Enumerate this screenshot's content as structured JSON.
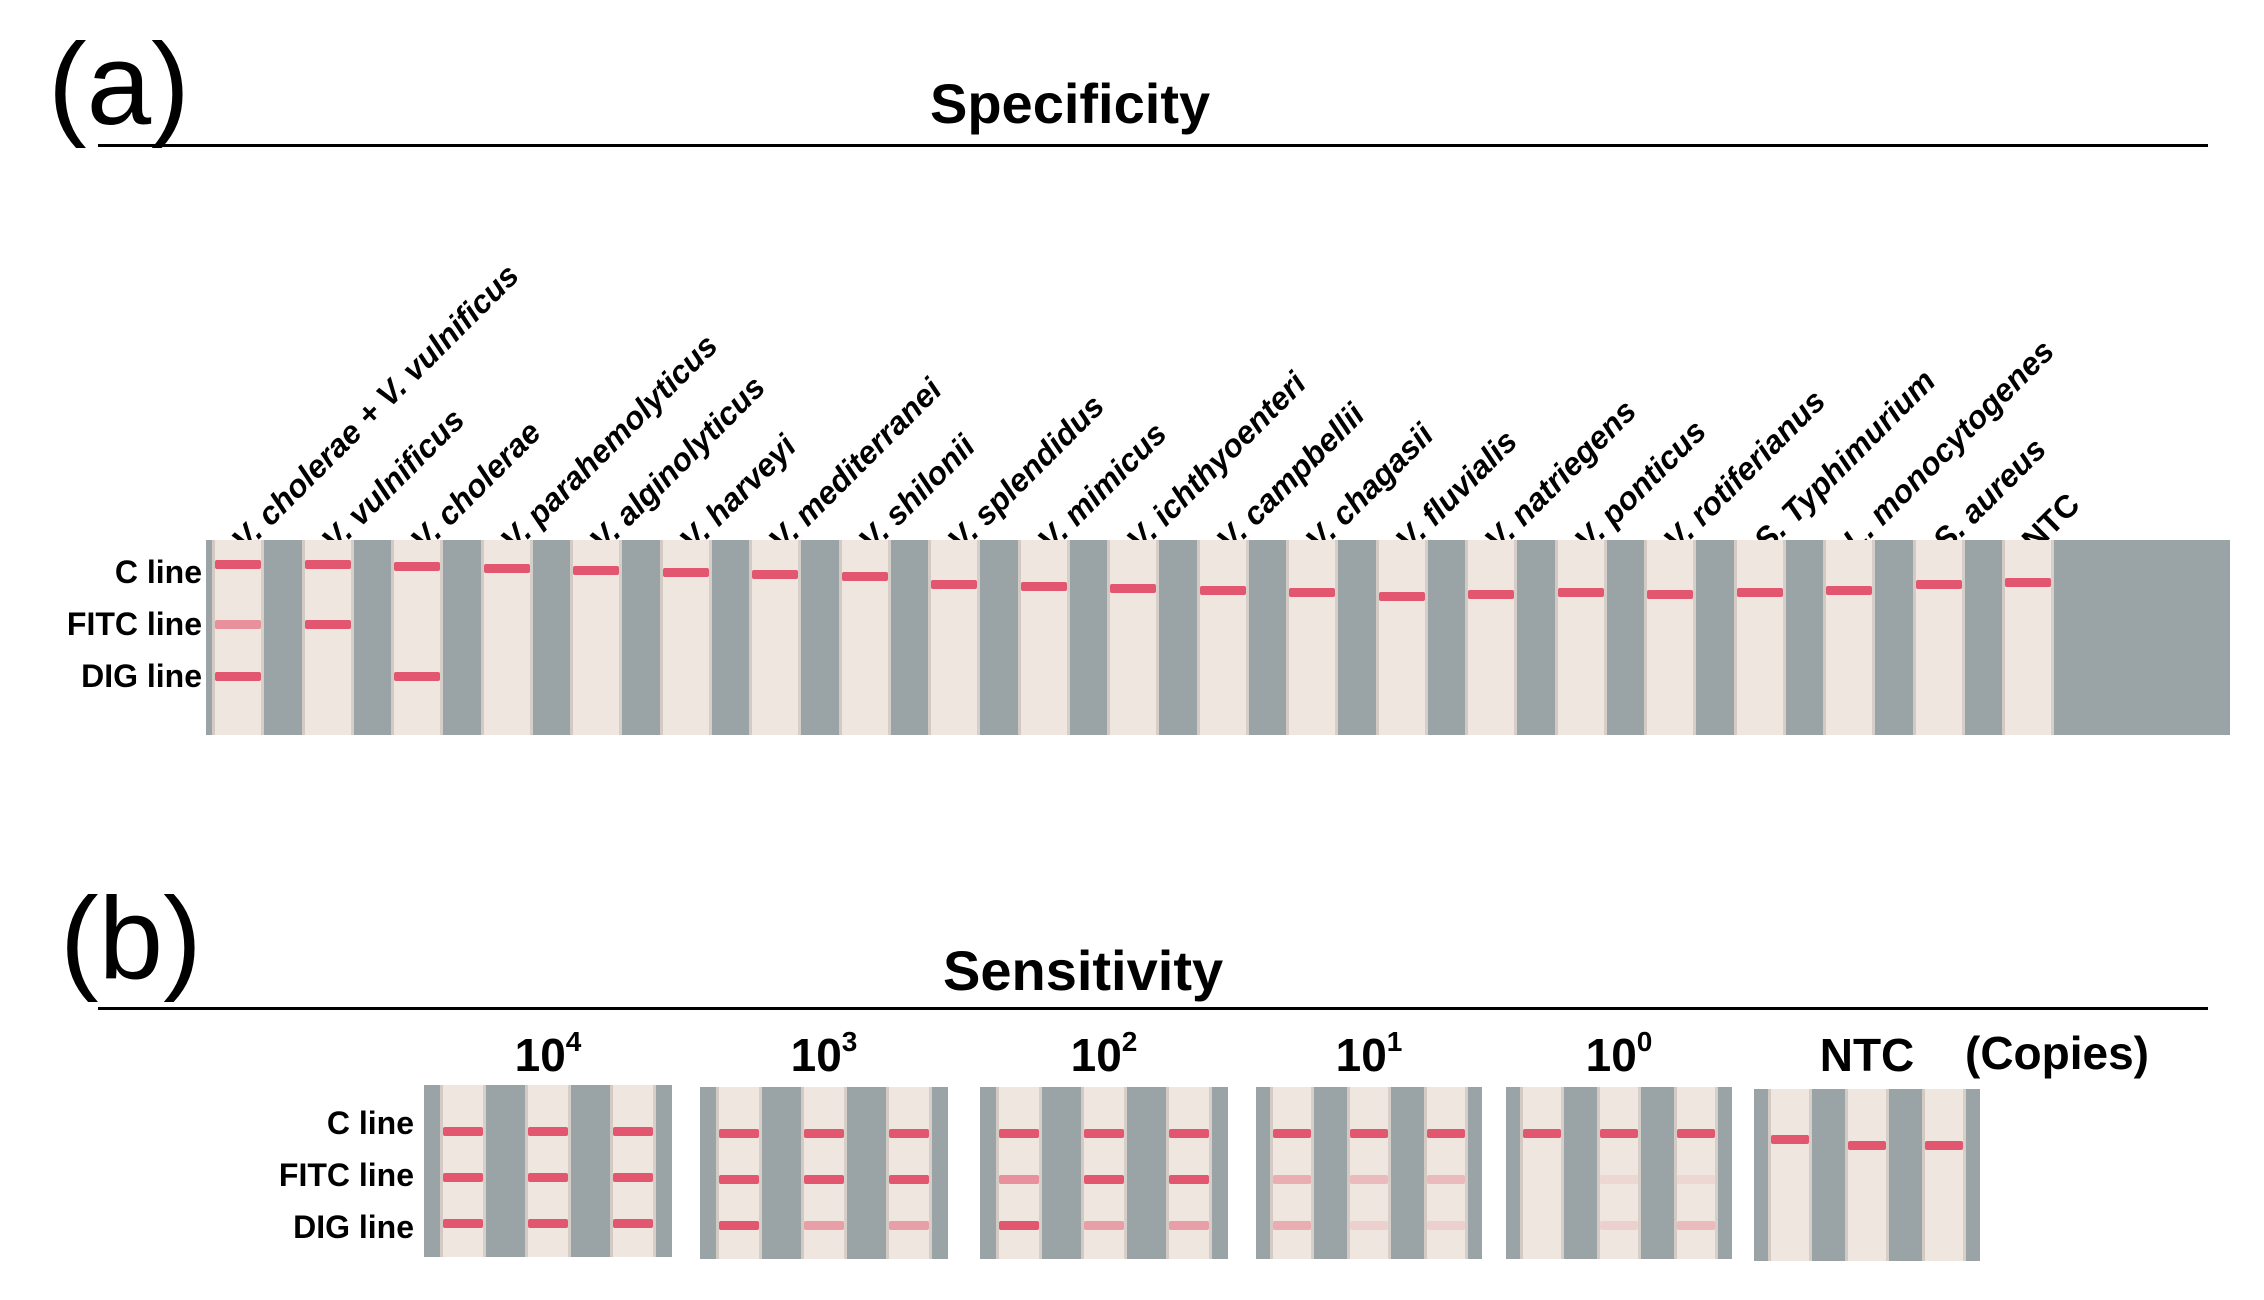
{
  "panel_a": {
    "letter": "(a)",
    "title": "Specificity",
    "line_labels": [
      "C line",
      "FITC line",
      "DIG line"
    ],
    "lanes": [
      {
        "label": "V. cholerae + V. vulnificus",
        "italic": true,
        "bands": {
          "C": 1,
          "FITC": 0.6,
          "DIG": 1
        }
      },
      {
        "label": "V. vulnificus",
        "italic": true,
        "bands": {
          "C": 1,
          "FITC": 1,
          "DIG": 0
        }
      },
      {
        "label": "V. cholerae",
        "italic": true,
        "bands": {
          "C": 1,
          "FITC": 0,
          "DIG": 1
        }
      },
      {
        "label": "V. parahemolyticus",
        "italic": true,
        "bands": {
          "C": 1,
          "FITC": 0,
          "DIG": 0
        }
      },
      {
        "label": "V. alginolyticus",
        "italic": true,
        "bands": {
          "C": 1,
          "FITC": 0,
          "DIG": 0
        }
      },
      {
        "label": "V. harveyi",
        "italic": true,
        "bands": {
          "C": 1,
          "FITC": 0,
          "DIG": 0
        }
      },
      {
        "label": "V. mediterranei",
        "italic": true,
        "bands": {
          "C": 1,
          "FITC": 0,
          "DIG": 0
        }
      },
      {
        "label": "V. shilonii",
        "italic": true,
        "bands": {
          "C": 1,
          "FITC": 0,
          "DIG": 0
        }
      },
      {
        "label": "V. splendidus",
        "italic": true,
        "bands": {
          "C": 1,
          "FITC": 0,
          "DIG": 0
        }
      },
      {
        "label": "V. mimicus",
        "italic": true,
        "bands": {
          "C": 1,
          "FITC": 0,
          "DIG": 0
        }
      },
      {
        "label": "V. ichthyoenteri",
        "italic": true,
        "bands": {
          "C": 1,
          "FITC": 0,
          "DIG": 0
        }
      },
      {
        "label": "V. campbellii",
        "italic": true,
        "bands": {
          "C": 1,
          "FITC": 0,
          "DIG": 0
        }
      },
      {
        "label": "V. chagasii",
        "italic": true,
        "bands": {
          "C": 1,
          "FITC": 0,
          "DIG": 0
        }
      },
      {
        "label": "V. fluvialis",
        "italic": true,
        "bands": {
          "C": 1,
          "FITC": 0,
          "DIG": 0
        }
      },
      {
        "label": "V. natriegens",
        "italic": true,
        "bands": {
          "C": 1,
          "FITC": 0,
          "DIG": 0
        }
      },
      {
        "label": "V. ponticus",
        "italic": true,
        "bands": {
          "C": 1,
          "FITC": 0,
          "DIG": 0
        }
      },
      {
        "label": "V. rotiferianus",
        "italic": true,
        "bands": {
          "C": 1,
          "FITC": 0,
          "DIG": 0
        }
      },
      {
        "label": "S. Typhimurium",
        "italic": true,
        "bands": {
          "C": 1,
          "FITC": 0,
          "DIG": 0
        }
      },
      {
        "label": "L. monocytogenes",
        "italic": true,
        "bands": {
          "C": 1,
          "FITC": 0,
          "DIG": 0
        }
      },
      {
        "label": "S. aureus",
        "italic": true,
        "bands": {
          "C": 1,
          "FITC": 0,
          "DIG": 0
        }
      },
      {
        "label": "NTC",
        "italic": false,
        "bands": {
          "C": 1,
          "FITC": 0,
          "DIG": 0
        }
      }
    ]
  },
  "panel_b": {
    "letter": "(b)",
    "title": "Sensitivity",
    "line_labels": [
      "C line",
      "FITC line",
      "DIG line"
    ],
    "copies_label": "(Copies)",
    "groups": [
      {
        "base": "10",
        "exp": "4",
        "strips": [
          {
            "C": 1,
            "FITC": 1,
            "DIG": 1
          },
          {
            "C": 1,
            "FITC": 1,
            "DIG": 1
          },
          {
            "C": 1,
            "FITC": 1,
            "DIG": 1
          }
        ]
      },
      {
        "base": "10",
        "exp": "3",
        "strips": [
          {
            "C": 1,
            "FITC": 1,
            "DIG": 1
          },
          {
            "C": 1,
            "FITC": 1,
            "DIG": 0.5
          },
          {
            "C": 1,
            "FITC": 1,
            "DIG": 0.5
          }
        ]
      },
      {
        "base": "10",
        "exp": "2",
        "strips": [
          {
            "C": 1,
            "FITC": 0.6,
            "DIG": 1
          },
          {
            "C": 1,
            "FITC": 1,
            "DIG": 0.5
          },
          {
            "C": 1,
            "FITC": 1,
            "DIG": 0.5
          }
        ]
      },
      {
        "base": "10",
        "exp": "1",
        "strips": [
          {
            "C": 1,
            "FITC": 0.4,
            "DIG": 0.4
          },
          {
            "C": 1,
            "FITC": 0.3,
            "DIG": 0.15
          },
          {
            "C": 1,
            "FITC": 0.3,
            "DIG": 0.15
          }
        ]
      },
      {
        "base": "10",
        "exp": "0",
        "strips": [
          {
            "C": 1,
            "FITC": 0,
            "DIG": 0
          },
          {
            "C": 1,
            "FITC": 0.1,
            "DIG": 0.15
          },
          {
            "C": 1,
            "FITC": 0.1,
            "DIG": 0.3
          }
        ]
      },
      {
        "base": "",
        "exp": "",
        "label": "NTC",
        "strips": [
          {
            "C": 1,
            "FITC": 0,
            "DIG": 0
          },
          {
            "C": 1,
            "FITC": 0,
            "DIG": 0
          },
          {
            "C": 1,
            "FITC": 0,
            "DIG": 0
          }
        ]
      }
    ]
  },
  "colors": {
    "band": "#e2576f",
    "strip": "#efe6df",
    "background_gray": "#9aa3a6"
  }
}
